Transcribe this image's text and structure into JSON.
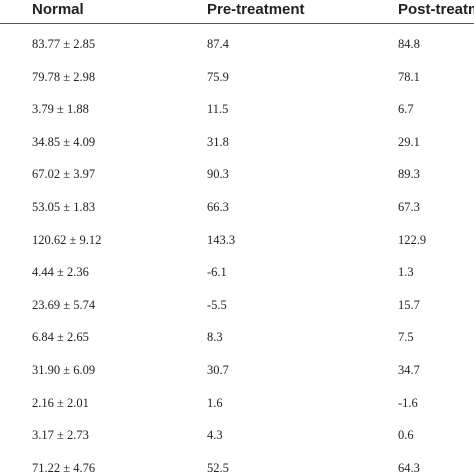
{
  "table": {
    "header": [
      "Normal",
      "Pre-treatment",
      "Post-treatment"
    ],
    "rows": [
      [
        "83.77 ± 2.85",
        "87.4",
        "84.8"
      ],
      [
        "79.78 ± 2.98",
        "75.9",
        "78.1"
      ],
      [
        "3.79 ± 1.88",
        "11.5",
        "6.7"
      ],
      [
        "34.85 ± 4.09",
        "31.8",
        "29.1"
      ],
      [
        "67.02 ± 3.97",
        "90.3",
        "89.3"
      ],
      [
        "53.05 ± 1.83",
        "66.3",
        "67.3"
      ],
      [
        "120.62 ± 9.12",
        "143.3",
        "122.9"
      ],
      [
        "4.44 ± 2.36",
        "-6.1",
        "1.3"
      ],
      [
        "23.69 ± 5.74",
        "-5.5",
        "15.7"
      ],
      [
        "6.84 ± 2.65",
        "8.3",
        "7.5"
      ],
      [
        "31.90 ± 6.09",
        "30.7",
        "34.7"
      ],
      [
        "2.16 ± 2.01",
        "1.6",
        "-1.6"
      ],
      [
        "3.17 ± 2.73",
        "4.3",
        "0.6"
      ],
      [
        "71.22 ± 4.76",
        "52.5",
        "64.3"
      ]
    ]
  }
}
